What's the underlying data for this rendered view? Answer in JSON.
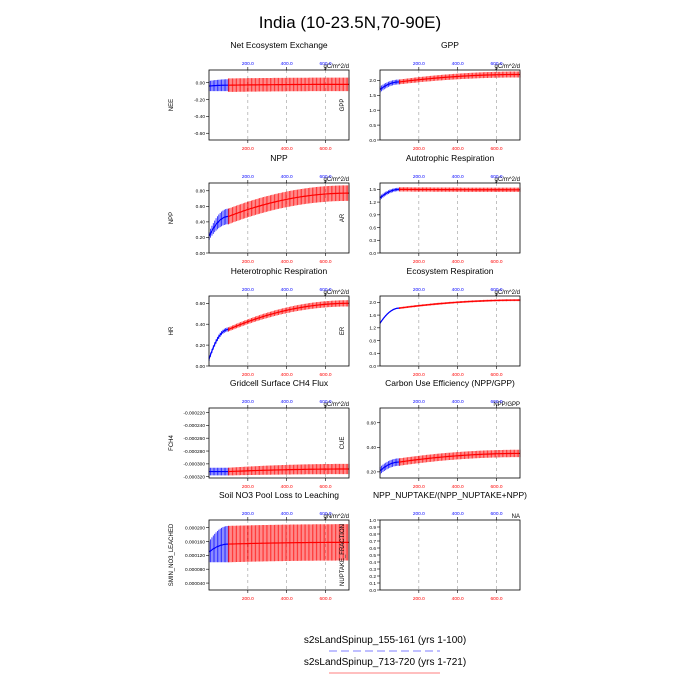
{
  "figure": {
    "title": "India (10-23.5N,70-90E)",
    "legend": [
      {
        "label": "s2sLandSpinup_155-161 (yrs 1-100)",
        "color": "#0000ff",
        "dash": true
      },
      {
        "label": "s2sLandSpinup_713-720 (yrs 1-721)",
        "color": "#ff0000",
        "dash": false
      }
    ],
    "colors": {
      "case1": "#0000ff",
      "case2": "#ff0000",
      "grid": "#999999"
    }
  },
  "chart_data": [
    {
      "type": "line",
      "title": "Net Ecosystem Exchange",
      "units": "gC/m^2/d",
      "ylabel": "NEE",
      "ylim": [
        -0.68,
        0.15
      ],
      "yticks": [
        "0.00",
        "-0.20",
        "-0.40",
        "-0.60"
      ],
      "ytickvals": [
        0,
        -0.2,
        -0.4,
        -0.6
      ],
      "xlim": [
        0,
        721
      ],
      "xticks_top": [
        "200.0",
        "400.0",
        "600.0"
      ],
      "xticks_bottom": [
        "200.0",
        "400.0",
        "600.0"
      ],
      "xtickvals": [
        200,
        400,
        600
      ],
      "series": [
        {
          "name": "s2sLandSpinup_155-161 (yrs 1-100)",
          "x": [
            1,
            100
          ],
          "center": [
            -0.04,
            -0.03
          ],
          "amp": [
            0.06,
            0.07
          ]
        },
        {
          "name": "s2sLandSpinup_713-720 (yrs 1-721)",
          "x": [
            100,
            721
          ],
          "center": [
            -0.03,
            -0.02
          ],
          "amp": [
            0.08,
            0.08
          ]
        }
      ]
    },
    {
      "type": "line",
      "title": "GPP",
      "units": "gC/m^2/d",
      "ylabel": "GPP",
      "ylim": [
        0.0,
        2.35
      ],
      "yticks": [
        "2.0",
        "1.5",
        "1.0",
        "0.5",
        "0.0"
      ],
      "ytickvals": [
        2.0,
        1.5,
        1.0,
        0.5,
        0.0
      ],
      "xlim": [
        0,
        721
      ],
      "xticks_top": [
        "200.0",
        "400.0",
        "600.0"
      ],
      "xticks_bottom": [
        "200.0",
        "400.0",
        "600.0"
      ],
      "xtickvals": [
        200,
        400,
        600
      ],
      "series": [
        {
          "name": "s2sLandSpinup_155-161 (yrs 1-100)",
          "x": [
            1,
            100
          ],
          "center": [
            1.7,
            1.95
          ],
          "amp": [
            0.1,
            0.08
          ]
        },
        {
          "name": "s2sLandSpinup_713-720 (yrs 1-721)",
          "x": [
            100,
            721
          ],
          "center": [
            1.95,
            2.2
          ],
          "amp": [
            0.08,
            0.1
          ]
        }
      ]
    },
    {
      "type": "line",
      "title": "NPP",
      "units": "gC/m^2/d",
      "ylabel": "NPP",
      "ylim": [
        0.0,
        0.9
      ],
      "yticks": [
        "0.80",
        "0.60",
        "0.40",
        "0.20",
        "0.00"
      ],
      "ytickvals": [
        0.8,
        0.6,
        0.4,
        0.2,
        0.0
      ],
      "xlim": [
        0,
        721
      ],
      "xticks_top": [
        "200.0",
        "400.0",
        "600.0"
      ],
      "xticks_bottom": [
        "200.0",
        "400.0",
        "600.0"
      ],
      "xtickvals": [
        200,
        400,
        600
      ],
      "series": [
        {
          "name": "s2sLandSpinup_155-161 (yrs 1-100)",
          "x": [
            1,
            100
          ],
          "center": [
            0.22,
            0.47
          ],
          "amp": [
            0.05,
            0.1
          ]
        },
        {
          "name": "s2sLandSpinup_713-720 (yrs 1-721)",
          "x": [
            100,
            721
          ],
          "center": [
            0.47,
            0.77
          ],
          "amp": [
            0.1,
            0.1
          ]
        }
      ]
    },
    {
      "type": "line",
      "title": "Autotrophic Respiration",
      "units": "gC/m^2/d",
      "ylabel": "AR",
      "ylim": [
        0.0,
        1.65
      ],
      "yticks": [
        "1.5",
        "1.2",
        "0.9",
        "0.6",
        "0.3",
        "0.0"
      ],
      "ytickvals": [
        1.5,
        1.2,
        0.9,
        0.6,
        0.3,
        0.0
      ],
      "xlim": [
        0,
        721
      ],
      "xticks_top": [
        "200.0",
        "400.0",
        "600.0"
      ],
      "xticks_bottom": [
        "200.0",
        "400.0",
        "600.0"
      ],
      "xtickvals": [
        200,
        400,
        600
      ],
      "series": [
        {
          "name": "s2sLandSpinup_155-161 (yrs 1-100)",
          "x": [
            1,
            100
          ],
          "center": [
            1.3,
            1.5
          ],
          "amp": [
            0.05,
            0.04
          ]
        },
        {
          "name": "s2sLandSpinup_713-720 (yrs 1-721)",
          "x": [
            100,
            721
          ],
          "center": [
            1.5,
            1.49
          ],
          "amp": [
            0.05,
            0.05
          ]
        }
      ]
    },
    {
      "type": "line",
      "title": "Heterotrophic Respiration",
      "units": "gC/m^2/d",
      "ylabel": "HR",
      "ylim": [
        0.0,
        0.67
      ],
      "yticks": [
        "0.60",
        "0.40",
        "0.20",
        "0.00"
      ],
      "ytickvals": [
        0.6,
        0.4,
        0.2,
        0.0
      ],
      "xlim": [
        0,
        721
      ],
      "xticks_top": [
        "200.0",
        "400.0",
        "600.0"
      ],
      "xticks_bottom": [
        "200.0",
        "400.0",
        "600.0"
      ],
      "xtickvals": [
        200,
        400,
        600
      ],
      "series": [
        {
          "name": "s2sLandSpinup_155-161 (yrs 1-100)",
          "x": [
            1,
            100
          ],
          "center": [
            0.07,
            0.35
          ],
          "amp": [
            0.02,
            0.02
          ]
        },
        {
          "name": "s2sLandSpinup_713-720 (yrs 1-721)",
          "x": [
            100,
            721
          ],
          "center": [
            0.35,
            0.6
          ],
          "amp": [
            0.02,
            0.03
          ]
        }
      ]
    },
    {
      "type": "line",
      "title": "Ecosystem Respiration",
      "units": "gC/m^2/d",
      "ylabel": "ER",
      "ylim": [
        0.0,
        2.2
      ],
      "yticks": [
        "2.0",
        "1.6",
        "1.2",
        "0.8",
        "0.4",
        "0.0"
      ],
      "ytickvals": [
        2.0,
        1.6,
        1.2,
        0.8,
        0.4,
        0.0
      ],
      "xlim": [
        0,
        721
      ],
      "xticks_top": [
        "200.0",
        "400.0",
        "600.0"
      ],
      "xticks_bottom": [
        "200.0",
        "400.0",
        "600.0"
      ],
      "xtickvals": [
        200,
        400,
        600
      ],
      "series": [
        {
          "name": "s2sLandSpinup_155-161 (yrs 1-100)",
          "x": [
            1,
            100
          ],
          "center": [
            1.35,
            1.82
          ],
          "amp": [
            0.02,
            0.02
          ]
        },
        {
          "name": "s2sLandSpinup_713-720 (yrs 1-721)",
          "x": [
            100,
            721
          ],
          "center": [
            1.82,
            2.07
          ],
          "amp": [
            0.03,
            0.03
          ]
        }
      ]
    },
    {
      "type": "line",
      "title": "Gridcell Surface CH4 Flux",
      "units": "gC/m^2/d",
      "ylabel": "FCH4",
      "ylim": [
        -0.000322,
        -0.000213
      ],
      "yticks": [
        "-0.000220",
        "-0.000240",
        "-0.000260",
        "-0.000280",
        "-0.000300",
        "-0.000320"
      ],
      "ytickvals": [
        -0.00022,
        -0.00024,
        -0.00026,
        -0.00028,
        -0.0003,
        -0.00032
      ],
      "xlim": [
        0,
        721
      ],
      "xticks_top": [
        "200.0",
        "400.0",
        "600.0"
      ],
      "xticks_bottom": [
        "200.0",
        "400.0",
        "600.0"
      ],
      "xtickvals": [
        200,
        400,
        600
      ],
      "series": [
        {
          "name": "s2sLandSpinup_155-161 (yrs 1-100)",
          "x": [
            1,
            100
          ],
          "center": [
            -0.000312,
            -0.000312
          ],
          "amp": [
            6e-06,
            6e-06
          ]
        },
        {
          "name": "s2sLandSpinup_713-720 (yrs 1-721)",
          "x": [
            100,
            721
          ],
          "center": [
            -0.000312,
            -0.000308
          ],
          "amp": [
            6e-06,
            8e-06
          ]
        }
      ]
    },
    {
      "type": "line",
      "title": "Carbon Use Efficiency (NPP/GPP)",
      "units": "NPP/GPP",
      "ylabel": "CUE",
      "ylim": [
        0.15,
        0.72
      ],
      "yticks": [
        "0.60",
        "0.40",
        "0.20"
      ],
      "ytickvals": [
        0.6,
        0.4,
        0.2
      ],
      "xlim": [
        0,
        721
      ],
      "xticks_top": [
        "200.0",
        "400.0",
        "600.0"
      ],
      "xticks_bottom": [
        "200.0",
        "400.0",
        "600.0"
      ],
      "xtickvals": [
        200,
        400,
        600
      ],
      "series": [
        {
          "name": "s2sLandSpinup_155-161 (yrs 1-100)",
          "x": [
            1,
            100
          ],
          "center": [
            0.21,
            0.28
          ],
          "amp": [
            0.03,
            0.03
          ]
        },
        {
          "name": "s2sLandSpinup_713-720 (yrs 1-721)",
          "x": [
            100,
            721
          ],
          "center": [
            0.28,
            0.35
          ],
          "amp": [
            0.03,
            0.03
          ]
        }
      ]
    },
    {
      "type": "line",
      "title": "Soil NO3 Pool Loss to Leaching",
      "units": "gN/m^2/d",
      "ylabel": "SMIN_NO3_LEACHED",
      "ylim": [
        2e-05,
        0.000222
      ],
      "yticks": [
        "0.000200",
        "0.000160",
        "0.000120",
        "0.000080",
        "0.000040"
      ],
      "ytickvals": [
        0.0002,
        0.00016,
        0.00012,
        8e-05,
        4e-05
      ],
      "xlim": [
        0,
        721
      ],
      "xticks_top": [
        "200.0",
        "400.0",
        "600.0"
      ],
      "xticks_bottom": [
        "200.0",
        "400.0",
        "600.0"
      ],
      "xtickvals": [
        200,
        400,
        600
      ],
      "series": [
        {
          "name": "s2sLandSpinup_155-161 (yrs 1-100)",
          "x": [
            1,
            100
          ],
          "low": [
            0.0001,
            0.0001
          ],
          "high": [
            0.00016,
            0.000205
          ]
        },
        {
          "name": "s2sLandSpinup_713-720 (yrs 1-721)",
          "x": [
            100,
            721
          ],
          "low": [
            0.0001,
            0.000105
          ],
          "high": [
            0.000205,
            0.00021
          ]
        }
      ]
    },
    {
      "type": "line",
      "title": "NPP_NUPTAKE/(NPP_NUPTAKE+NPP)",
      "units": "NA",
      "ylabel": "NUPTAKE_FRACTION",
      "ylim": [
        0.0,
        1.0
      ],
      "yticks": [
        "1.0",
        "0.9",
        "0.8",
        "0.7",
        "0.6",
        "0.5",
        "0.4",
        "0.3",
        "0.2",
        "0.1",
        "0.0"
      ],
      "ytickvals": [
        1.0,
        0.9,
        0.8,
        0.7,
        0.6,
        0.5,
        0.4,
        0.3,
        0.2,
        0.1,
        0.0
      ],
      "xlim": [
        0,
        721
      ],
      "xticks_top": [
        "200.0",
        "400.0",
        "600.0"
      ],
      "xticks_bottom": [
        "200.0",
        "400.0",
        "600.0"
      ],
      "xtickvals": [
        200,
        400,
        600
      ],
      "series": []
    }
  ]
}
